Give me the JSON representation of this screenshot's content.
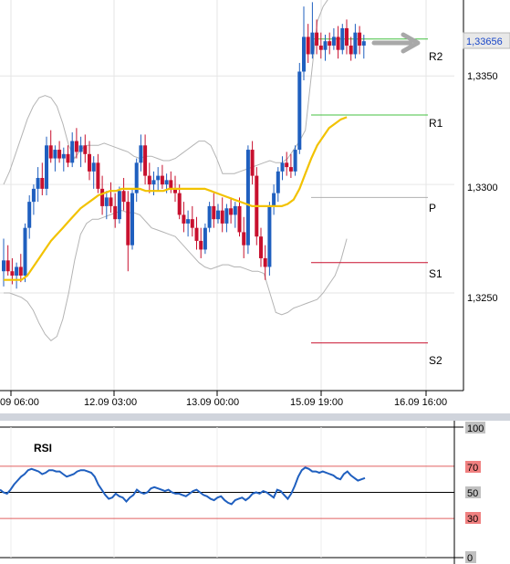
{
  "chart_data": [
    {
      "type": "candlestick",
      "title": "",
      "up_color": "#1f5fbf",
      "down_color": "#c8102e",
      "ylim": [
        1.3205,
        1.3385
      ],
      "yticks": [
        "1,3250",
        "1,3300",
        "1,3350"
      ],
      "ytick_values": [
        1.325,
        1.33,
        1.335
      ],
      "current_price": {
        "label": "1,33656",
        "value": 1.33656
      },
      "xticks": [
        "09 06:00",
        "12.09 03:00",
        "13.09 00:00",
        "15.09 19:00",
        "16.09 16:00"
      ],
      "xtick_index": [
        0,
        25,
        50,
        76,
        102
      ],
      "grid": true,
      "candles": [
        [
          1.326,
          1.3275,
          1.3253,
          1.3265
        ],
        [
          1.3265,
          1.3272,
          1.3258,
          1.326
        ],
        [
          1.326,
          1.3266,
          1.3254,
          1.3258
        ],
        [
          1.3258,
          1.3264,
          1.3252,
          1.3262
        ],
        [
          1.3262,
          1.3268,
          1.3255,
          1.3258
        ],
        [
          1.3258,
          1.3282,
          1.3255,
          1.328
        ],
        [
          1.328,
          1.3295,
          1.3275,
          1.3292
        ],
        [
          1.3292,
          1.33,
          1.3286,
          1.3298
        ],
        [
          1.3298,
          1.3308,
          1.3292,
          1.3303
        ],
        [
          1.3303,
          1.331,
          1.3295,
          1.3298
        ],
        [
          1.3298,
          1.3322,
          1.3295,
          1.3318
        ],
        [
          1.3318,
          1.3325,
          1.331,
          1.3312
        ],
        [
          1.3312,
          1.3318,
          1.3306,
          1.3316
        ],
        [
          1.3316,
          1.332,
          1.331,
          1.3312
        ],
        [
          1.3312,
          1.3317,
          1.3306,
          1.3314
        ],
        [
          1.3314,
          1.3318,
          1.3308,
          1.331
        ],
        [
          1.331,
          1.3324,
          1.3308,
          1.332
        ],
        [
          1.332,
          1.3326,
          1.3312,
          1.3315
        ],
        [
          1.3315,
          1.3322,
          1.3308,
          1.3318
        ],
        [
          1.3318,
          1.3323,
          1.331,
          1.3314
        ],
        [
          1.3314,
          1.332,
          1.3302,
          1.3306
        ],
        [
          1.3306,
          1.3313,
          1.3298,
          1.331
        ],
        [
          1.331,
          1.3314,
          1.3296,
          1.3298
        ],
        [
          1.3298,
          1.3304,
          1.3286,
          1.329
        ],
        [
          1.329,
          1.3297,
          1.3284,
          1.3294
        ],
        [
          1.3294,
          1.3301,
          1.3287,
          1.329
        ],
        [
          1.329,
          1.3296,
          1.328,
          1.3284
        ],
        [
          1.3284,
          1.3299,
          1.3282,
          1.3297
        ],
        [
          1.3297,
          1.3303,
          1.3288,
          1.3292
        ],
        [
          1.3292,
          1.3297,
          1.326,
          1.3272
        ],
        [
          1.3272,
          1.3298,
          1.327,
          1.3296
        ],
        [
          1.3296,
          1.3312,
          1.3292,
          1.331
        ],
        [
          1.331,
          1.3323,
          1.3306,
          1.3318
        ],
        [
          1.3318,
          1.3323,
          1.33,
          1.3304
        ],
        [
          1.3304,
          1.331,
          1.3296,
          1.33
        ],
        [
          1.33,
          1.3306,
          1.3295,
          1.3302
        ],
        [
          1.3302,
          1.3308,
          1.3297,
          1.3304
        ],
        [
          1.3304,
          1.3309,
          1.3298,
          1.33
        ],
        [
          1.33,
          1.3305,
          1.3296,
          1.3302
        ],
        [
          1.3302,
          1.3306,
          1.3296,
          1.3298
        ],
        [
          1.3298,
          1.3304,
          1.3292,
          1.3296
        ],
        [
          1.3296,
          1.33,
          1.3284,
          1.3286
        ],
        [
          1.3286,
          1.3292,
          1.3278,
          1.3282
        ],
        [
          1.3282,
          1.3288,
          1.3276,
          1.3284
        ],
        [
          1.3284,
          1.329,
          1.3276,
          1.328
        ],
        [
          1.328,
          1.3285,
          1.327,
          1.3274
        ],
        [
          1.3274,
          1.328,
          1.3266,
          1.327
        ],
        [
          1.327,
          1.3282,
          1.3268,
          1.328
        ],
        [
          1.328,
          1.3292,
          1.3278,
          1.329
        ],
        [
          1.329,
          1.3296,
          1.328,
          1.3284
        ],
        [
          1.3284,
          1.3291,
          1.3282,
          1.3288
        ],
        [
          1.3288,
          1.3294,
          1.3278,
          1.3282
        ],
        [
          1.3282,
          1.3291,
          1.3278,
          1.3289
        ],
        [
          1.3289,
          1.3294,
          1.3282,
          1.3286
        ],
        [
          1.3286,
          1.3292,
          1.328,
          1.329
        ],
        [
          1.329,
          1.3294,
          1.3276,
          1.3278
        ],
        [
          1.3278,
          1.3285,
          1.3266,
          1.3272
        ],
        [
          1.3272,
          1.3318,
          1.3268,
          1.3316
        ],
        [
          1.3316,
          1.332,
          1.33,
          1.3304
        ],
        [
          1.3304,
          1.3308,
          1.3272,
          1.3276
        ],
        [
          1.3276,
          1.328,
          1.3262,
          1.3266
        ],
        [
          1.3266,
          1.3272,
          1.3256,
          1.3262
        ],
        [
          1.3262,
          1.3292,
          1.3258,
          1.329
        ],
        [
          1.329,
          1.33,
          1.3286,
          1.3296
        ],
        [
          1.3296,
          1.3308,
          1.3292,
          1.3306
        ],
        [
          1.3306,
          1.3313,
          1.3302,
          1.331
        ],
        [
          1.331,
          1.3315,
          1.3304,
          1.3308
        ],
        [
          1.3308,
          1.3314,
          1.3303,
          1.3306
        ],
        [
          1.3306,
          1.3318,
          1.3304,
          1.3316
        ],
        [
          1.3316,
          1.3356,
          1.3314,
          1.3352
        ],
        [
          1.3352,
          1.3382,
          1.3348,
          1.3368
        ],
        [
          1.3368,
          1.3374,
          1.3356,
          1.336
        ],
        [
          1.336,
          1.3384,
          1.3358,
          1.337
        ],
        [
          1.337,
          1.3376,
          1.336,
          1.3364
        ],
        [
          1.3364,
          1.337,
          1.3358,
          1.3362
        ],
        [
          1.3362,
          1.3369,
          1.3357,
          1.3366
        ],
        [
          1.3366,
          1.337,
          1.336,
          1.3364
        ],
        [
          1.3364,
          1.3372,
          1.3362,
          1.3368
        ],
        [
          1.3368,
          1.3373,
          1.3358,
          1.3362
        ],
        [
          1.3362,
          1.3374,
          1.336,
          1.3372
        ],
        [
          1.3372,
          1.3376,
          1.336,
          1.3364
        ],
        [
          1.3364,
          1.3368,
          1.3357,
          1.336
        ],
        [
          1.336,
          1.3374,
          1.3358,
          1.337
        ],
        [
          1.337,
          1.3373,
          1.336,
          1.3364
        ],
        [
          1.3364,
          1.3369,
          1.3358,
          1.3366
        ]
      ],
      "moving_average": [
        1.3256,
        1.3256,
        1.3256,
        1.3256,
        1.3258,
        1.3262,
        1.3266,
        1.327,
        1.3274,
        1.3277,
        1.328,
        1.3283,
        1.3286,
        1.3289,
        1.3291,
        1.3293,
        1.3295,
        1.3296,
        1.3297,
        1.3297,
        1.3298,
        1.3298,
        1.3298,
        1.3298,
        1.3297,
        1.3297,
        1.3297,
        1.3297,
        1.3298,
        1.3298,
        1.3298,
        1.3298,
        1.3298,
        1.3298,
        1.3298,
        1.3297,
        1.3296,
        1.3295,
        1.3294,
        1.3293,
        1.3292,
        1.3291,
        1.329,
        1.329,
        1.329,
        1.329,
        1.329,
        1.329,
        1.3291,
        1.3293,
        1.3298,
        1.3305,
        1.3312,
        1.3318,
        1.3322,
        1.3326,
        1.3328,
        1.333,
        1.3331
      ],
      "bollinger_upper": [
        1.33,
        1.3306,
        1.3314,
        1.3322,
        1.333,
        1.3336,
        1.334,
        1.3341,
        1.334,
        1.3336,
        1.3328,
        1.3318,
        1.3312,
        1.3316,
        1.3318,
        1.3318,
        1.3318,
        1.3319,
        1.3318,
        1.3317,
        1.3316,
        1.3315,
        1.3313,
        1.3312,
        1.3313,
        1.3313,
        1.3312,
        1.3311,
        1.3311,
        1.3312,
        1.3314,
        1.3316,
        1.3318,
        1.332,
        1.332,
        1.3318,
        1.3312,
        1.3305,
        1.3305,
        1.3305,
        1.3306,
        1.3307,
        1.3308,
        1.3309,
        1.331,
        1.3311,
        1.331,
        1.331,
        1.3312,
        1.3316,
        1.332,
        1.3325,
        1.335,
        1.3375,
        1.3382,
        1.3386,
        1.3388,
        1.3389,
        1.339
      ],
      "bollinger_lower": [
        1.325,
        1.325,
        1.3249,
        1.3248,
        1.3246,
        1.3242,
        1.3236,
        1.3231,
        1.3228,
        1.323,
        1.3238,
        1.325,
        1.3265,
        1.3277,
        1.3282,
        1.3284,
        1.3284,
        1.3285,
        1.3286,
        1.3287,
        1.3288,
        1.3287,
        1.3287,
        1.3286,
        1.3283,
        1.328,
        1.3279,
        1.3278,
        1.3277,
        1.3276,
        1.3273,
        1.327,
        1.3267,
        1.3264,
        1.3262,
        1.3261,
        1.3262,
        1.3263,
        1.3263,
        1.3262,
        1.3262,
        1.3261,
        1.326,
        1.326,
        1.3259,
        1.325,
        1.3241,
        1.324,
        1.3241,
        1.3243,
        1.3244,
        1.3245,
        1.3246,
        1.3247,
        1.325,
        1.3254,
        1.3258,
        1.3265,
        1.3275
      ],
      "levels": [
        {
          "label": "R2",
          "value": 1.3367,
          "color": "#44c040"
        },
        {
          "label": "R1",
          "value": 1.3332,
          "color": "#44c040"
        },
        {
          "label": "P",
          "value": 1.3294,
          "color": "#b0b0b0"
        },
        {
          "label": "S1",
          "value": 1.3264,
          "color": "#c8102e"
        },
        {
          "label": "S2",
          "value": 1.3227,
          "color": "#c8102e"
        }
      ]
    },
    {
      "type": "line",
      "title": "RSI",
      "ylim": [
        0,
        100
      ],
      "yticks": [
        "100",
        "70",
        "50",
        "30",
        "0"
      ],
      "ytick_values": [
        100,
        70,
        50,
        30,
        0
      ],
      "levels": [
        {
          "value": 70,
          "color": "#e06060"
        },
        {
          "value": 50,
          "color": "#000000"
        },
        {
          "value": 30,
          "color": "#e06060"
        }
      ],
      "series": [
        {
          "values": [
            52,
            50,
            49,
            52,
            56,
            59,
            62,
            64,
            67,
            68,
            67,
            66,
            64,
            65,
            67,
            67,
            66,
            66,
            64,
            62,
            63,
            64,
            66,
            67,
            67,
            66,
            65,
            62,
            56,
            52,
            48,
            45,
            46,
            49,
            47,
            46,
            43,
            46,
            48,
            52,
            50,
            49,
            50,
            53,
            54,
            53,
            52,
            51,
            52,
            50,
            49,
            49,
            48,
            47,
            49,
            51,
            52,
            50,
            48,
            47,
            45,
            44,
            46,
            47,
            44,
            42,
            41,
            44,
            45,
            46,
            44,
            46,
            49,
            50,
            49,
            51,
            50,
            48,
            46,
            52,
            51,
            48,
            45,
            49,
            55,
            62,
            67,
            69,
            68,
            66,
            66,
            65,
            66,
            65,
            64,
            63,
            61,
            60,
            64,
            66,
            63,
            61,
            59,
            60,
            61
          ]
        }
      ]
    }
  ],
  "labels": {
    "rsi_title": "RSI",
    "price_badge": "1,33656",
    "level_r2": "R2",
    "level_r1": "R1",
    "level_p": "P",
    "level_s1": "S1",
    "level_s2": "S2",
    "xtick_0": "09 06:00",
    "xtick_1": "12.09 03:00",
    "xtick_2": "13.09 00:00",
    "xtick_3": "15.09 19:00",
    "xtick_4": "16.09 16:00",
    "ytick_1350": "1,3350",
    "ytick_1330": "1,3300",
    "ytick_1325": "1,3250",
    "rsi_100": "100",
    "rsi_70": "70",
    "rsi_50": "50",
    "rsi_30": "30",
    "rsi_0": "0"
  }
}
